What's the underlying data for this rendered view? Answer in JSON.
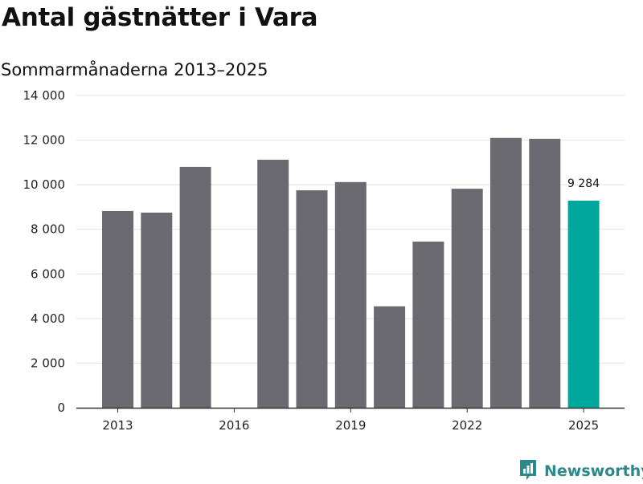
{
  "chart_data": {
    "type": "bar",
    "title": "Antal gästnätter i Vara",
    "subtitle": "Sommarmånaderna 2013–2025",
    "x": [
      2013,
      2014,
      2015,
      2016,
      2017,
      2018,
      2019,
      2020,
      2021,
      2022,
      2023,
      2024,
      2025
    ],
    "values": [
      8820,
      8750,
      10800,
      null,
      11120,
      9750,
      10120,
      4550,
      7450,
      9820,
      12100,
      12060,
      9284
    ],
    "x_tick_labels": [
      "2013",
      "2016",
      "2019",
      "2022",
      "2025"
    ],
    "y_tick_labels": [
      "0",
      "2 000",
      "4 000",
      "6 000",
      "8 000",
      "10 000",
      "12 000",
      "14 000"
    ],
    "ylim": [
      0,
      14000
    ],
    "grid": true,
    "highlight": {
      "x": 2025,
      "label": "9 284"
    },
    "colors": {
      "bar": "#6b6a70",
      "highlight": "#00a79d",
      "grid": "#e2e2e2",
      "axis": "#333333"
    }
  },
  "brand": {
    "name": "Newsworthy",
    "color": "#2a8a8a",
    "icon": "newsworthy-logo-icon"
  }
}
